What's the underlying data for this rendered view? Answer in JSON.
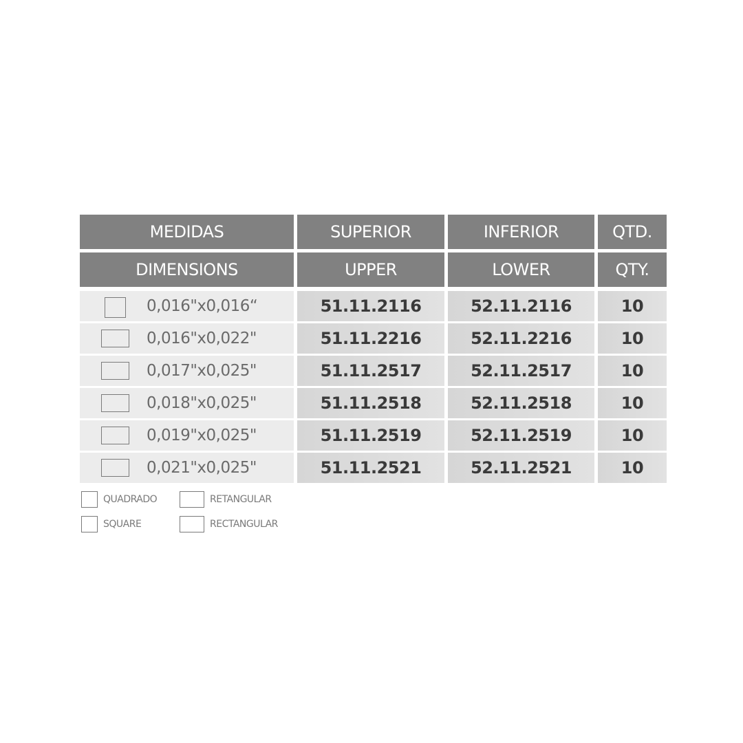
{
  "header_row1": [
    "MEDIDAS",
    "SUPERIOR",
    "INFERIOR",
    "QTD."
  ],
  "header_row2": [
    "DIMENSIONS",
    "UPPER",
    "LOWER",
    "QTY."
  ],
  "rows": [
    {
      "shape": "square",
      "dimension": "0,016\"x0,016“",
      "upper": "51.11.2116",
      "lower": "52.11.2116",
      "qty": "10"
    },
    {
      "shape": "rectangular",
      "dimension": "0,016\"x0,022\"",
      "upper": "51.11.2216",
      "lower": "52.11.2216",
      "qty": "10"
    },
    {
      "shape": "rectangular",
      "dimension": "0,017\"x0,025\"",
      "upper": "51.11.2517",
      "lower": "52.11.2517",
      "qty": "10"
    },
    {
      "shape": "rectangular",
      "dimension": "0,018\"x0,025\"",
      "upper": "51.11.2518",
      "lower": "52.11.2518",
      "qty": "10"
    },
    {
      "shape": "rectangular",
      "dimension": "0,019\"x0,025\"",
      "upper": "51.11.2519",
      "lower": "52.11.2519",
      "qty": "10"
    },
    {
      "shape": "rectangular",
      "dimension": "0,021\"x0,025\"",
      "upper": "51.11.2521",
      "lower": "52.11.2521",
      "qty": "10"
    }
  ],
  "legend": {
    "square_pt": "QUADRADO",
    "square_en": "SQUARE",
    "rect_pt": "RETANGULAR",
    "rect_en": "RECTANGULAR"
  },
  "colors": {
    "header": "#818181",
    "cell_light": "#ececec",
    "cell_dark": "#dadada"
  }
}
